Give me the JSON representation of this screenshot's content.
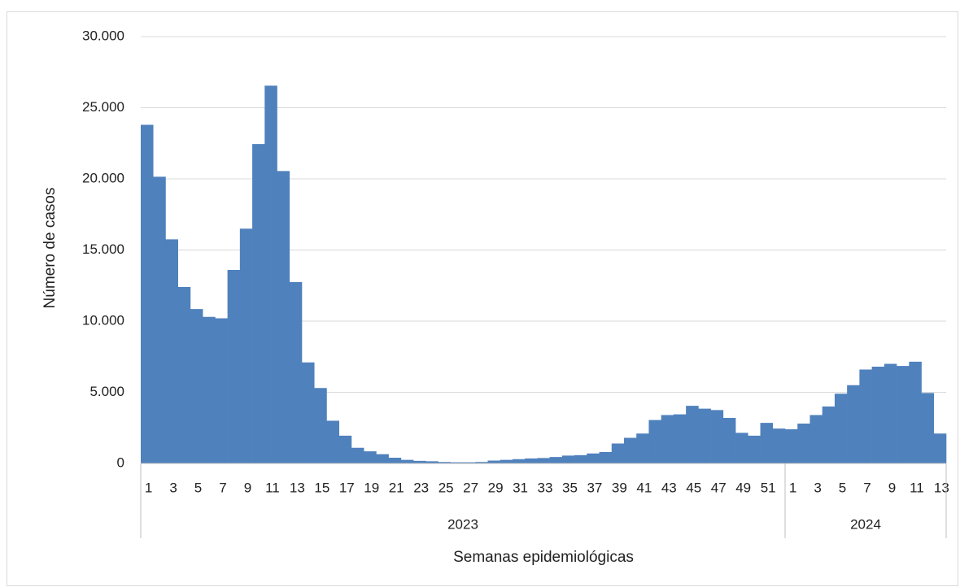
{
  "chart_data": {
    "type": "bar",
    "y_label": "Número de casos",
    "x_label": "Semanas epidemiológicas",
    "color": "#4f81bd",
    "grid": true,
    "ylim": [
      0,
      30000
    ],
    "yticks": [
      0,
      {
        "value": 5000,
        "label": "5.000"
      },
      {
        "value": 10000,
        "label": "10.000"
      },
      {
        "value": 15000,
        "label": "15.000"
      },
      {
        "value": 20000,
        "label": "20.000"
      },
      {
        "value": 25000,
        "label": "25.000"
      },
      {
        "value": 30000,
        "label": "30.000"
      }
    ],
    "groups": [
      {
        "name": "2023",
        "categories": [
          "1",
          null,
          "3",
          null,
          "5",
          null,
          "7",
          null,
          "9",
          null,
          "11",
          null,
          "13",
          null,
          "15",
          null,
          "17",
          null,
          "19",
          null,
          "21",
          null,
          "23",
          null,
          "25",
          null,
          "27",
          null,
          "29",
          null,
          "31",
          null,
          "33",
          null,
          "35",
          null,
          "37",
          null,
          "39",
          null,
          "41",
          null,
          "43",
          null,
          "45",
          null,
          "47",
          null,
          "49",
          null,
          "51",
          null
        ],
        "values": [
          23800,
          20150,
          15750,
          12400,
          10850,
          10300,
          10200,
          13600,
          16500,
          22450,
          26550,
          20550,
          12750,
          7100,
          5300,
          3000,
          1950,
          1100,
          850,
          650,
          400,
          250,
          180,
          150,
          100,
          80,
          80,
          100,
          200,
          250,
          300,
          350,
          380,
          450,
          550,
          580,
          700,
          800,
          1400,
          1800,
          2100,
          3050,
          3400,
          3450,
          4050,
          3850,
          3750,
          3200,
          2150,
          1950,
          2850,
          2450
        ]
      },
      {
        "name": "2024",
        "categories": [
          "1",
          null,
          "3",
          null,
          "5",
          null,
          "7",
          null,
          "9",
          null,
          "11",
          null,
          "13"
        ],
        "values": [
          2400,
          2800,
          3400,
          4000,
          4900,
          5500,
          6600,
          6800,
          7000,
          6850,
          7150,
          4950,
          2100
        ]
      }
    ]
  }
}
